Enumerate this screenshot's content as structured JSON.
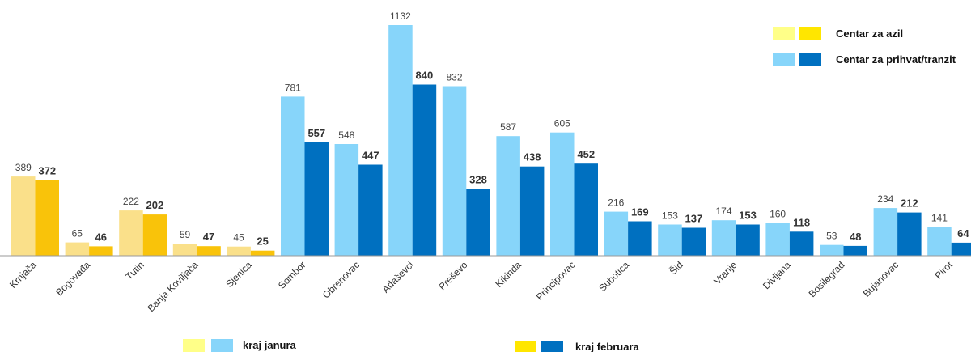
{
  "chart_data": {
    "type": "bar",
    "categories": [
      "Krnjača",
      "Bogovađa",
      "Tutin",
      "Banja Koviljača",
      "Sjenica",
      "Sombor",
      "Obrenovac",
      "Adaševci",
      "Preševo",
      "Kikinda",
      "Principovac",
      "Subotica",
      "Šid",
      "Vranje",
      "Divljana",
      "Bosilegrad",
      "Bujanovac",
      "Pirot"
    ],
    "center_type": [
      "azil",
      "azil",
      "azil",
      "azil",
      "azil",
      "prihvat",
      "prihvat",
      "prihvat",
      "prihvat",
      "prihvat",
      "prihvat",
      "prihvat",
      "prihvat",
      "prihvat",
      "prihvat",
      "prihvat",
      "prihvat",
      "prihvat"
    ],
    "series": [
      {
        "name": "kraj janura",
        "values": [
          389,
          65,
          222,
          59,
          45,
          781,
          548,
          1132,
          832,
          587,
          605,
          216,
          153,
          174,
          160,
          53,
          234,
          141
        ]
      },
      {
        "name": "kraj februara",
        "values": [
          372,
          46,
          202,
          47,
          25,
          557,
          447,
          840,
          328,
          438,
          452,
          169,
          137,
          153,
          118,
          48,
          212,
          64
        ]
      }
    ],
    "center_legend": [
      {
        "label": "Centar za azil",
        "key": "azil"
      },
      {
        "label": "Centar za prihvat/tranzit",
        "key": "prihvat"
      }
    ],
    "ylim": [
      0,
      1200
    ],
    "grid": false,
    "colors": {
      "azil_jan": "#FAE08A",
      "azil_feb": "#F9C30A",
      "prihvat_jan": "#87D5FA",
      "prihvat_feb": "#0070C0",
      "legend_azil_jan": "#FFFF88",
      "legend_azil_feb": "#FFE600",
      "legend_prihvat_jan": "#87D5FA",
      "legend_prihvat_feb": "#0070C0",
      "axis": "#999999"
    }
  }
}
